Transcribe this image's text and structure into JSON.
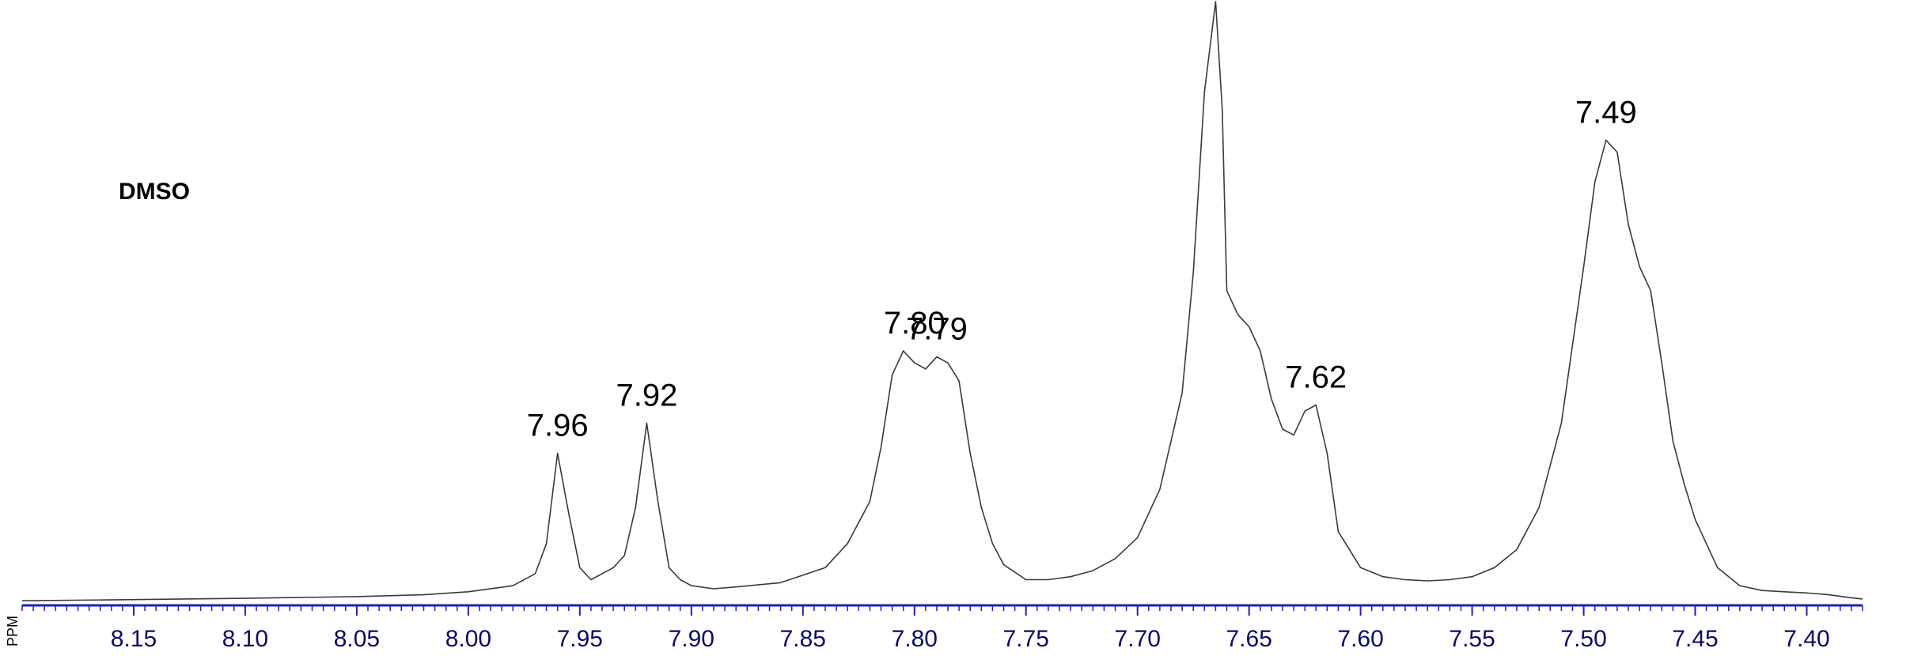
{
  "solvent": "DMSO",
  "colors": {
    "axis": "#1f1fbf",
    "trace": "#3a3a3a",
    "tick_text": "#0a0a6e"
  },
  "chart_data": {
    "type": "line",
    "title": "",
    "xlabel": "PPM",
    "ylabel": "",
    "x_reversed": true,
    "xlim": [
      8.2,
      7.375
    ],
    "ylim": [
      0,
      1.0
    ],
    "x_ticks": [
      8.15,
      8.1,
      8.05,
      8.0,
      7.95,
      7.9,
      7.85,
      7.8,
      7.75,
      7.7,
      7.65,
      7.6,
      7.55,
      7.5,
      7.45,
      7.4
    ],
    "x_tick_labels": [
      "8.15",
      "8.10",
      "8.05",
      "8.00",
      "7.95",
      "7.90",
      "7.85",
      "7.80",
      "7.75",
      "7.70",
      "7.65",
      "7.60",
      "7.55",
      "7.50",
      "7.45",
      "7.40"
    ],
    "minor_tick_step": 0.005,
    "peak_labels": [
      {
        "ppm": 7.96,
        "label": "7.96",
        "height": 0.25
      },
      {
        "ppm": 7.92,
        "label": "7.92",
        "height": 0.3
      },
      {
        "ppm": 7.8,
        "label": "7.80",
        "height": 0.42
      },
      {
        "ppm": 7.79,
        "label": "7.79",
        "height": 0.41
      },
      {
        "ppm": 7.62,
        "label": "7.62",
        "height": 0.33
      },
      {
        "ppm": 7.49,
        "label": "7.49",
        "height": 0.77
      }
    ],
    "series": [
      {
        "x": [
          8.2,
          8.15,
          8.1,
          8.05,
          8.02,
          8.0,
          7.98,
          7.97,
          7.965,
          7.96,
          7.955,
          7.95,
          7.945,
          7.94,
          7.935,
          7.93,
          7.925,
          7.92,
          7.915,
          7.91,
          7.905,
          7.9,
          7.89,
          7.88,
          7.86,
          7.84,
          7.83,
          7.82,
          7.815,
          7.81,
          7.805,
          7.8,
          7.795,
          7.79,
          7.785,
          7.78,
          7.775,
          7.77,
          7.765,
          7.76,
          7.75,
          7.74,
          7.73,
          7.72,
          7.71,
          7.7,
          7.69,
          7.68,
          7.675,
          7.67,
          7.665,
          7.662,
          7.66,
          7.655,
          7.65,
          7.645,
          7.64,
          7.635,
          7.63,
          7.625,
          7.62,
          7.615,
          7.61,
          7.6,
          7.59,
          7.58,
          7.57,
          7.56,
          7.55,
          7.54,
          7.53,
          7.52,
          7.51,
          7.5,
          7.495,
          7.49,
          7.485,
          7.48,
          7.475,
          7.47,
          7.465,
          7.46,
          7.455,
          7.45,
          7.445,
          7.44,
          7.43,
          7.42,
          7.41,
          7.4,
          7.39,
          7.38,
          7.375
        ],
        "y": [
          0.005,
          0.007,
          0.009,
          0.012,
          0.015,
          0.02,
          0.03,
          0.05,
          0.1,
          0.25,
          0.15,
          0.06,
          0.04,
          0.05,
          0.06,
          0.08,
          0.16,
          0.3,
          0.17,
          0.06,
          0.04,
          0.03,
          0.025,
          0.028,
          0.035,
          0.06,
          0.1,
          0.17,
          0.26,
          0.38,
          0.42,
          0.4,
          0.39,
          0.41,
          0.4,
          0.37,
          0.25,
          0.16,
          0.1,
          0.065,
          0.04,
          0.04,
          0.045,
          0.055,
          0.075,
          0.11,
          0.19,
          0.35,
          0.55,
          0.85,
          1.0,
          0.82,
          0.52,
          0.48,
          0.46,
          0.42,
          0.34,
          0.29,
          0.28,
          0.32,
          0.33,
          0.25,
          0.12,
          0.06,
          0.045,
          0.04,
          0.038,
          0.04,
          0.045,
          0.06,
          0.09,
          0.16,
          0.3,
          0.56,
          0.7,
          0.77,
          0.75,
          0.63,
          0.56,
          0.52,
          0.4,
          0.27,
          0.2,
          0.14,
          0.1,
          0.06,
          0.03,
          0.022,
          0.02,
          0.018,
          0.015,
          0.01,
          0.008
        ]
      }
    ],
    "grid": false,
    "legend": "none"
  }
}
